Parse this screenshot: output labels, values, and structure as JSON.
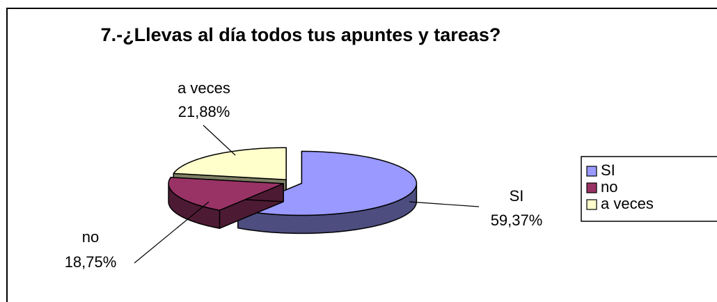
{
  "chart_data": {
    "type": "pie",
    "title": "7.-¿Llevas al día todos tus apuntes y tareas?",
    "categories": [
      "SI",
      "no",
      "a veces"
    ],
    "values": [
      59.37,
      18.75,
      21.88
    ],
    "value_labels": [
      "59,37%",
      "18,75%",
      "21,88%"
    ],
    "colors": [
      "#9999ff",
      "#993366",
      "#ffffcc"
    ],
    "legend": "right"
  }
}
